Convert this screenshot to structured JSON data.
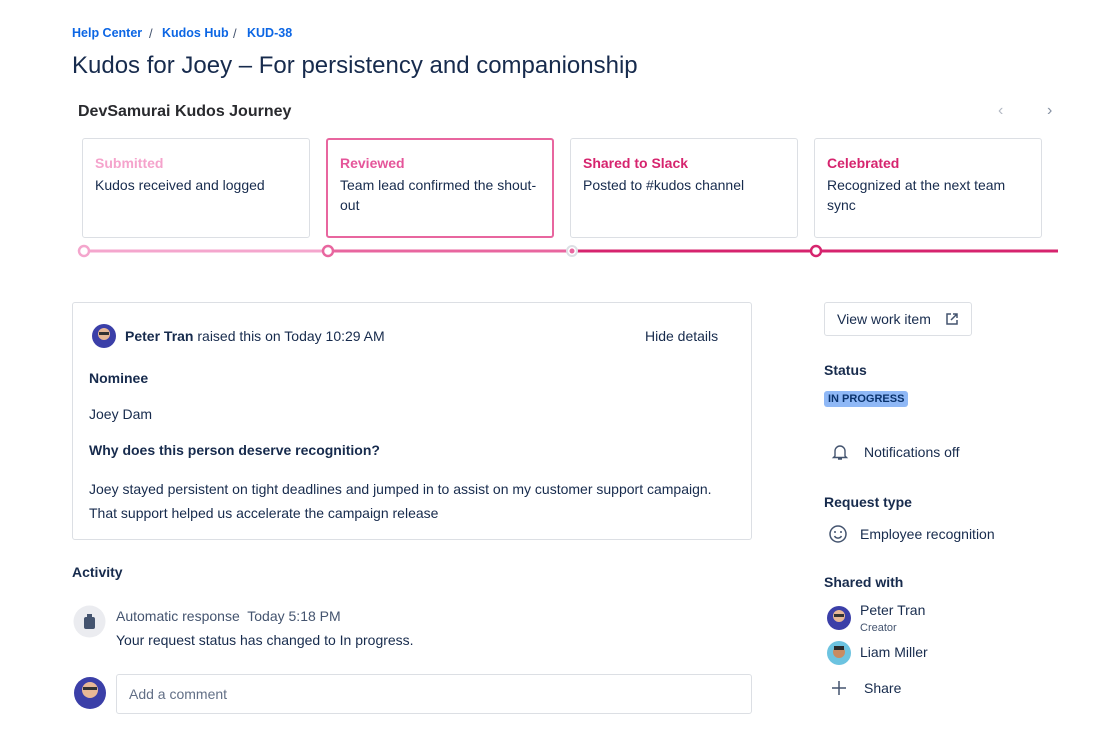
{
  "breadcrumbs": [
    "Help Center",
    "Kudos Hub",
    "KUD-38"
  ],
  "title": "Kudos for Joey – For persistency and companionship",
  "journey": {
    "title": "DevSamurai Kudos Journey",
    "steps": [
      {
        "label": "Submitted",
        "description": "Kudos received and logged"
      },
      {
        "label": "Reviewed",
        "description": "Team lead confirmed the shout-out"
      },
      {
        "label": "Shared to Slack",
        "description": "Posted to #kudos channel"
      },
      {
        "label": "Celebrated",
        "description": "Recognized at the next team sync"
      }
    ]
  },
  "request": {
    "author": "Peter Tran",
    "raised_text": "raised this on Today 10:29 AM",
    "toggle": "Hide details",
    "fields": [
      {
        "label": "Nominee",
        "value": "Joey Dam"
      },
      {
        "label": "Why does this person deserve recognition?",
        "value": "Joey stayed persistent on tight deadlines and jumped in to assist on my customer support campaign. That support helped us accelerate the campaign release"
      }
    ]
  },
  "activity": {
    "title": "Activity",
    "entries": [
      {
        "author": "Automatic response",
        "time": "Today 5:18 PM",
        "message": "Your request status has changed to In progress."
      }
    ],
    "comment_placeholder": "Add a comment"
  },
  "sidebar": {
    "view_button": "View work item",
    "status_label": "Status",
    "status": "IN PROGRESS",
    "notifications": "Notifications off",
    "request_type_label": "Request type",
    "request_type": "Employee recognition",
    "shared_with_label": "Shared with",
    "people": [
      {
        "name": "Peter Tran",
        "role": "Creator"
      },
      {
        "name": "Liam Miller"
      }
    ],
    "share": "Share"
  }
}
